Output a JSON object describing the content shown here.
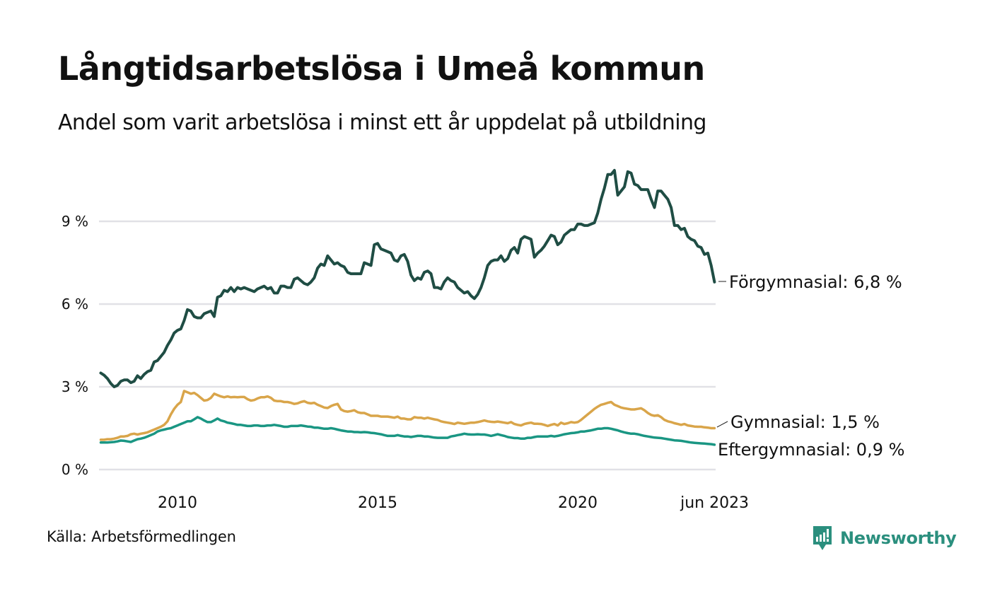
{
  "header": {
    "title": "Långtidsarbetslösa i Umeå kommun",
    "subtitle": "Andel som varit arbetslösa i minst ett år uppdelat på utbildning"
  },
  "footer": {
    "source": "Källa: Arbetsförmedlingen",
    "brand": "Newsworthy",
    "brand_icon": "newsworthy-chart-bubble-icon"
  },
  "colors": {
    "forgymnasial": "#1f4d44",
    "gymnasial": "#d9a54a",
    "eftergymnasial": "#1a9683",
    "grid": "#e1e1e6",
    "brand": "#2b8f7e"
  },
  "chart_data": {
    "type": "line",
    "title": "Långtidsarbetslösa i Umeå kommun",
    "subtitle": "Andel som varit arbetslösa i minst ett år uppdelat på utbildning",
    "xlabel": "",
    "ylabel": "",
    "x_start": "2008-02",
    "x_end": "2023-06",
    "x_frequency": "monthly",
    "xlim": [
      2008.0,
      2023.5
    ],
    "ylim": [
      0,
      11
    ],
    "grid": true,
    "y_ticks": [
      {
        "value": 0,
        "label": "0 %"
      },
      {
        "value": 3,
        "label": "3 %"
      },
      {
        "value": 6,
        "label": "6 %"
      },
      {
        "value": 9,
        "label": "9 %"
      }
    ],
    "x_ticks": [
      {
        "value": 2010.0,
        "label": "2010"
      },
      {
        "value": 2015.0,
        "label": "2015"
      },
      {
        "value": 2020.0,
        "label": "2020"
      },
      {
        "value": 2023.42,
        "label": "jun 2023"
      }
    ],
    "legend": "direct-labels-right",
    "series": [
      {
        "key": "forgymnasial",
        "name": "Förgymnasial",
        "end_label": "Förgymnasial: 6,8 %",
        "values": [
          3.5,
          3.42,
          3.3,
          3.12,
          3.0,
          3.05,
          3.2,
          3.25,
          3.25,
          3.15,
          3.2,
          3.4,
          3.3,
          3.45,
          3.55,
          3.6,
          3.9,
          3.95,
          4.1,
          4.25,
          4.5,
          4.7,
          4.95,
          5.05,
          5.1,
          5.4,
          5.8,
          5.75,
          5.55,
          5.5,
          5.5,
          5.65,
          5.7,
          5.75,
          5.55,
          6.25,
          6.3,
          6.5,
          6.45,
          6.6,
          6.45,
          6.6,
          6.55,
          6.6,
          6.55,
          6.5,
          6.45,
          6.55,
          6.6,
          6.65,
          6.55,
          6.6,
          6.4,
          6.4,
          6.65,
          6.65,
          6.6,
          6.6,
          6.9,
          6.95,
          6.85,
          6.75,
          6.7,
          6.8,
          6.95,
          7.3,
          7.45,
          7.4,
          7.75,
          7.6,
          7.45,
          7.5,
          7.4,
          7.35,
          7.15,
          7.1,
          7.1,
          7.1,
          7.1,
          7.5,
          7.45,
          7.4,
          8.15,
          8.2,
          8.0,
          7.95,
          7.9,
          7.85,
          7.6,
          7.55,
          7.75,
          7.8,
          7.55,
          7.05,
          6.85,
          6.95,
          6.9,
          7.15,
          7.2,
          7.1,
          6.6,
          6.6,
          6.55,
          6.8,
          6.95,
          6.85,
          6.8,
          6.6,
          6.5,
          6.4,
          6.45,
          6.3,
          6.2,
          6.35,
          6.6,
          6.95,
          7.4,
          7.55,
          7.6,
          7.6,
          7.75,
          7.55,
          7.65,
          7.95,
          8.05,
          7.85,
          8.35,
          8.45,
          8.4,
          8.35,
          7.7,
          7.85,
          7.95,
          8.1,
          8.3,
          8.5,
          8.45,
          8.15,
          8.25,
          8.5,
          8.6,
          8.7,
          8.7,
          8.9,
          8.9,
          8.85,
          8.85,
          8.9,
          8.95,
          9.3,
          9.8,
          10.2,
          10.7,
          10.7,
          10.85,
          9.95,
          10.1,
          10.25,
          10.8,
          10.75,
          10.35,
          10.3,
          10.15,
          10.15,
          10.15,
          9.8,
          9.5,
          10.1,
          10.1,
          9.95,
          9.8,
          9.5,
          8.85,
          8.85,
          8.7,
          8.75,
          8.45,
          8.35,
          8.3,
          8.1,
          8.05,
          7.8,
          7.85,
          7.4,
          6.8
        ]
      },
      {
        "key": "gymnasial",
        "name": "Gymnasial",
        "end_label": "Gymnasial: 1,5 %",
        "values": [
          1.08,
          1.08,
          1.1,
          1.1,
          1.12,
          1.15,
          1.2,
          1.2,
          1.22,
          1.28,
          1.3,
          1.27,
          1.3,
          1.32,
          1.35,
          1.4,
          1.45,
          1.5,
          1.55,
          1.62,
          1.75,
          2.0,
          2.2,
          2.35,
          2.45,
          2.85,
          2.8,
          2.75,
          2.78,
          2.7,
          2.6,
          2.5,
          2.52,
          2.6,
          2.75,
          2.7,
          2.65,
          2.62,
          2.65,
          2.62,
          2.63,
          2.62,
          2.63,
          2.63,
          2.55,
          2.5,
          2.52,
          2.58,
          2.62,
          2.62,
          2.65,
          2.6,
          2.5,
          2.48,
          2.48,
          2.45,
          2.45,
          2.42,
          2.38,
          2.4,
          2.45,
          2.48,
          2.42,
          2.4,
          2.42,
          2.35,
          2.3,
          2.25,
          2.23,
          2.3,
          2.35,
          2.38,
          2.18,
          2.12,
          2.1,
          2.12,
          2.15,
          2.08,
          2.05,
          2.05,
          2.0,
          1.95,
          1.95,
          1.95,
          1.92,
          1.92,
          1.92,
          1.9,
          1.88,
          1.92,
          1.85,
          1.85,
          1.82,
          1.82,
          1.9,
          1.88,
          1.88,
          1.85,
          1.88,
          1.85,
          1.82,
          1.8,
          1.75,
          1.72,
          1.7,
          1.68,
          1.65,
          1.7,
          1.68,
          1.66,
          1.68,
          1.7,
          1.7,
          1.72,
          1.75,
          1.78,
          1.75,
          1.73,
          1.72,
          1.74,
          1.72,
          1.7,
          1.68,
          1.72,
          1.65,
          1.62,
          1.6,
          1.65,
          1.68,
          1.7,
          1.66,
          1.66,
          1.65,
          1.62,
          1.58,
          1.62,
          1.65,
          1.6,
          1.7,
          1.65,
          1.68,
          1.72,
          1.7,
          1.72,
          1.8,
          1.9,
          2.0,
          2.1,
          2.2,
          2.28,
          2.35,
          2.38,
          2.42,
          2.45,
          2.35,
          2.3,
          2.25,
          2.22,
          2.2,
          2.18,
          2.18,
          2.2,
          2.22,
          2.15,
          2.05,
          1.98,
          1.95,
          1.97,
          1.9,
          1.8,
          1.75,
          1.72,
          1.68,
          1.65,
          1.62,
          1.65,
          1.6,
          1.58,
          1.56,
          1.55,
          1.55,
          1.53,
          1.52,
          1.5,
          1.5
        ]
      },
      {
        "key": "eftergymnasial",
        "name": "Eftergymnasial",
        "end_label": "Eftergymnasial: 0,9 %",
        "values": [
          0.98,
          0.98,
          0.98,
          0.99,
          1.0,
          1.02,
          1.05,
          1.04,
          1.02,
          1.0,
          1.05,
          1.1,
          1.12,
          1.15,
          1.2,
          1.25,
          1.3,
          1.38,
          1.42,
          1.45,
          1.48,
          1.5,
          1.55,
          1.6,
          1.65,
          1.7,
          1.75,
          1.75,
          1.82,
          1.9,
          1.85,
          1.78,
          1.72,
          1.72,
          1.78,
          1.85,
          1.78,
          1.75,
          1.7,
          1.68,
          1.65,
          1.62,
          1.62,
          1.6,
          1.58,
          1.58,
          1.6,
          1.6,
          1.58,
          1.58,
          1.6,
          1.6,
          1.62,
          1.6,
          1.58,
          1.55,
          1.55,
          1.58,
          1.58,
          1.58,
          1.6,
          1.58,
          1.56,
          1.55,
          1.52,
          1.52,
          1.5,
          1.48,
          1.48,
          1.5,
          1.48,
          1.45,
          1.42,
          1.4,
          1.38,
          1.38,
          1.36,
          1.36,
          1.35,
          1.36,
          1.35,
          1.33,
          1.32,
          1.3,
          1.28,
          1.25,
          1.22,
          1.22,
          1.22,
          1.25,
          1.22,
          1.2,
          1.2,
          1.18,
          1.2,
          1.22,
          1.22,
          1.2,
          1.2,
          1.18,
          1.16,
          1.15,
          1.15,
          1.15,
          1.15,
          1.2,
          1.22,
          1.25,
          1.27,
          1.3,
          1.28,
          1.27,
          1.27,
          1.28,
          1.27,
          1.27,
          1.25,
          1.22,
          1.25,
          1.28,
          1.25,
          1.22,
          1.18,
          1.16,
          1.14,
          1.14,
          1.12,
          1.12,
          1.15,
          1.15,
          1.18,
          1.2,
          1.2,
          1.2,
          1.2,
          1.22,
          1.2,
          1.22,
          1.25,
          1.28,
          1.3,
          1.32,
          1.33,
          1.35,
          1.38,
          1.38,
          1.4,
          1.42,
          1.45,
          1.48,
          1.48,
          1.5,
          1.5,
          1.48,
          1.45,
          1.42,
          1.38,
          1.35,
          1.32,
          1.3,
          1.3,
          1.28,
          1.25,
          1.22,
          1.2,
          1.18,
          1.16,
          1.15,
          1.14,
          1.12,
          1.1,
          1.08,
          1.06,
          1.05,
          1.04,
          1.02,
          1.0,
          0.98,
          0.97,
          0.96,
          0.95,
          0.94,
          0.93,
          0.92,
          0.9
        ]
      }
    ]
  }
}
